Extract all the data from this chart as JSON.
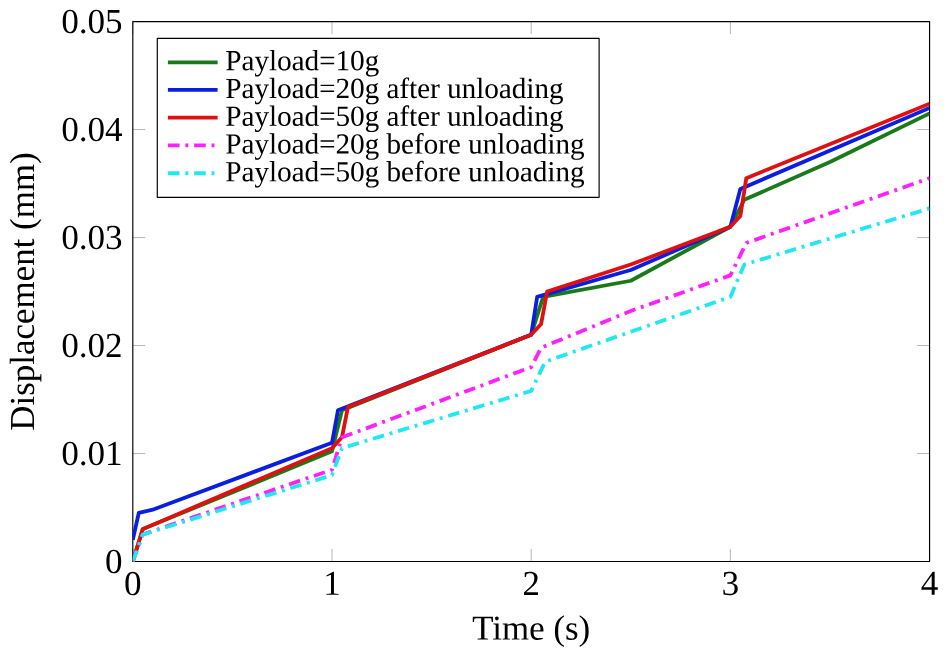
{
  "chart_data": {
    "type": "line",
    "xlabel": "Time (s)",
    "ylabel": "Displacement (mm)",
    "xlim": [
      0,
      4
    ],
    "ylim": [
      0,
      0.05
    ],
    "xticks": [
      0,
      1,
      2,
      3,
      4
    ],
    "yticks": [
      0,
      0.01,
      0.02,
      0.03,
      0.04,
      0.05
    ],
    "grid": false,
    "legend": "top left",
    "marker": "none",
    "series": [
      {
        "name": "Payload=10g",
        "color": "#1a7a1a",
        "line_style": "solid",
        "x": [
          0,
          0.05,
          1.0,
          1.05,
          2.0,
          2.06,
          2.5,
          3.0,
          3.07,
          3.5,
          4.0
        ],
        "values": [
          0,
          0.003,
          0.0102,
          0.014,
          0.021,
          0.0245,
          0.026,
          0.031,
          0.0335,
          0.037,
          0.0415
        ]
      },
      {
        "name": "Payload=20g  after unloading",
        "color": "#0a1ee0",
        "line_style": "solid",
        "x": [
          0,
          0.03,
          0.1,
          1.0,
          1.03,
          2.0,
          2.03,
          2.5,
          3.0,
          3.05,
          4.0
        ],
        "values": [
          0.002,
          0.0045,
          0.0048,
          0.011,
          0.014,
          0.021,
          0.0245,
          0.027,
          0.031,
          0.0345,
          0.042
        ]
      },
      {
        "name": "Payload=50g  after unloading",
        "color": "#e01010",
        "line_style": "solid",
        "x": [
          0,
          0.05,
          1.0,
          1.05,
          1.08,
          2.0,
          2.05,
          2.08,
          2.5,
          3.0,
          3.05,
          3.08,
          4.0
        ],
        "values": [
          0,
          0.003,
          0.0105,
          0.0115,
          0.0143,
          0.021,
          0.022,
          0.025,
          0.0275,
          0.031,
          0.032,
          0.0355,
          0.0424
        ]
      },
      {
        "name": "Payload=20g  before unloading",
        "color": "#ff20ff",
        "line_style": "dashed",
        "x": [
          0,
          0.05,
          1.0,
          1.05,
          2.0,
          2.05,
          2.5,
          3.0,
          3.08,
          4.0
        ],
        "values": [
          0,
          0.0025,
          0.0085,
          0.0115,
          0.018,
          0.0198,
          0.0232,
          0.0265,
          0.0295,
          0.0355
        ]
      },
      {
        "name": "Payload=50g  before unloading",
        "color": "#20e8f0",
        "line_style": "dashed",
        "x": [
          0,
          0.05,
          1.0,
          1.05,
          2.0,
          2.07,
          3.0,
          3.07,
          4.0
        ],
        "values": [
          0,
          0.0025,
          0.008,
          0.0105,
          0.0158,
          0.0185,
          0.0245,
          0.0275,
          0.0327
        ]
      }
    ]
  }
}
